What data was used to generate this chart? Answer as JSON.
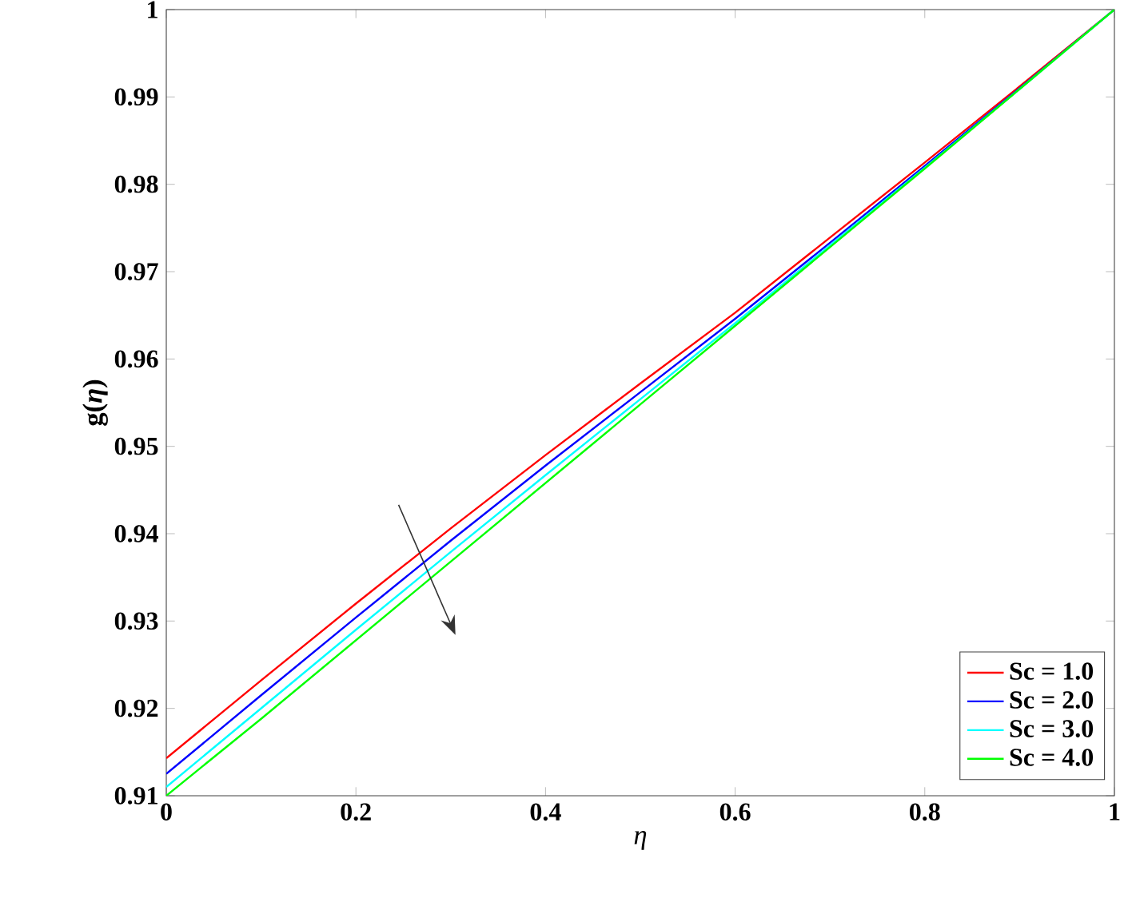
{
  "chart_data": {
    "type": "line",
    "xlabel": "η",
    "ylabel": "g(*η*)",
    "x": [
      0,
      0.1,
      0.2,
      0.3,
      0.4,
      0.5,
      0.6,
      0.7,
      0.8,
      0.9,
      1.0
    ],
    "series": [
      {
        "name": "Sc = 1.0",
        "color": "#ff0000",
        "values": [
          0.9143,
          0.9232,
          0.932,
          0.9406,
          0.949,
          0.9572,
          0.9653,
          0.9739,
          0.9825,
          0.9912,
          1.0
        ]
      },
      {
        "name": "Sc = 2.0",
        "color": "#0000ff",
        "values": [
          0.9125,
          0.9215,
          0.9304,
          0.9392,
          0.9478,
          0.9562,
          0.9646,
          0.9733,
          0.9821,
          0.991,
          1.0
        ]
      },
      {
        "name": "Sc = 3.0",
        "color": "#00ffff",
        "values": [
          0.911,
          0.92,
          0.929,
          0.9379,
          0.9467,
          0.9554,
          0.9641,
          0.973,
          0.9819,
          0.9909,
          1.0
        ]
      },
      {
        "name": "Sc = 4.0",
        "color": "#00ff00",
        "values": [
          0.91,
          0.9188,
          0.9278,
          0.9368,
          0.9458,
          0.9548,
          0.9638,
          0.9728,
          0.9818,
          0.9909,
          1.0
        ]
      }
    ],
    "xlim": [
      0,
      1
    ],
    "ylim": [
      0.91,
      1
    ],
    "xticks": [
      0,
      0.2,
      0.4,
      0.6,
      0.8,
      1
    ],
    "yticks": [
      0.91,
      0.92,
      0.93,
      0.94,
      0.95,
      0.96,
      0.97,
      0.98,
      0.99,
      1
    ],
    "legend": "bottom right",
    "grid": false,
    "marker": "none",
    "line_style": "solid"
  }
}
